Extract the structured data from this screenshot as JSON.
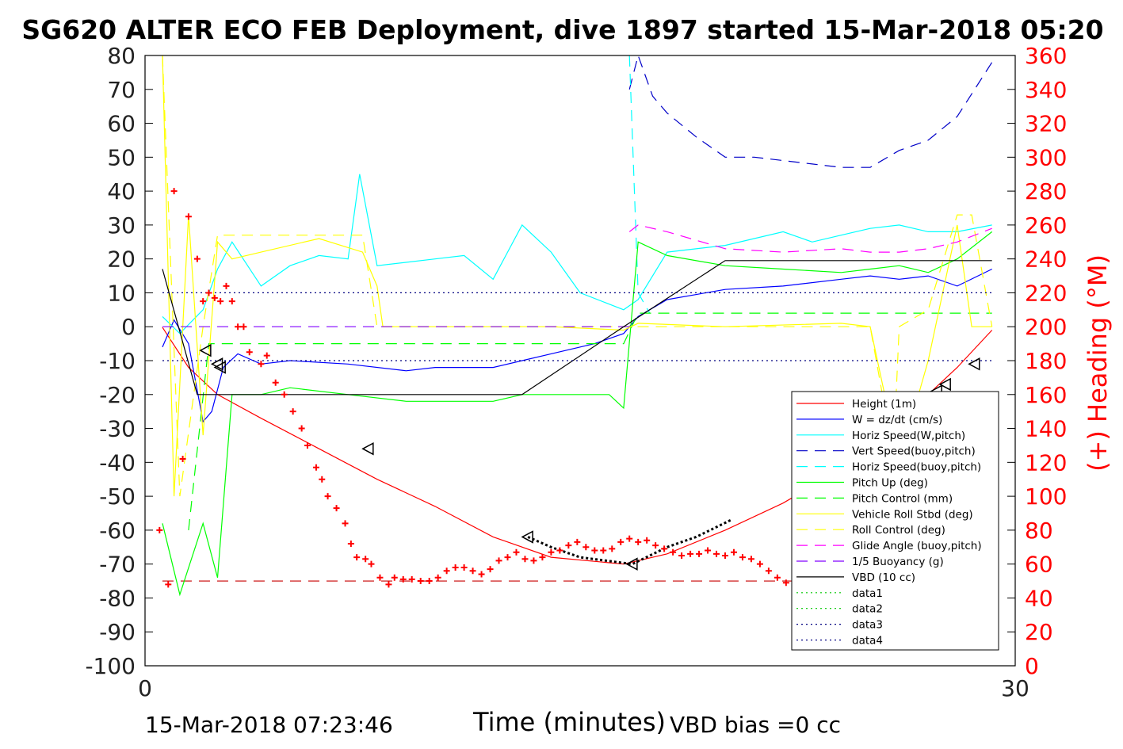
{
  "chart_data": {
    "type": "line",
    "title": "SG620 ALTER ECO FEB Deployment, dive 1897 started 15-Mar-2018 05:20",
    "xlabel": "Time (minutes)",
    "ylabel_left": "",
    "ylabel_right": "(+) Heading (°M)",
    "xlim": [
      0,
      30
    ],
    "ylim": [
      -100,
      80
    ],
    "ylim_right": [
      0,
      360
    ],
    "xticks": [
      "0",
      "30"
    ],
    "yticks": [
      "80",
      "70",
      "60",
      "50",
      "40",
      "30",
      "20",
      "10",
      "0",
      "-10",
      "-20",
      "-30",
      "-40",
      "-50",
      "-60",
      "-70",
      "-80",
      "-90",
      "-100"
    ],
    "yticks_right": [
      "360",
      "340",
      "320",
      "300",
      "280",
      "260",
      "240",
      "220",
      "200",
      "180",
      "160",
      "140",
      "120",
      "100",
      "80",
      "60",
      "40",
      "20",
      "0"
    ],
    "grid": false,
    "legend_position": "lower-right",
    "series": [
      {
        "name": "Height (1m)",
        "color": "#ff0000",
        "style": "solid",
        "x": [
          0.6,
          1.5,
          2.5,
          4,
          6,
          8,
          10,
          12,
          14,
          16.5,
          18,
          20,
          22,
          24,
          25,
          26,
          27,
          28,
          29.2
        ],
        "y": [
          -0.2,
          -12,
          -20,
          -27,
          -36,
          -45,
          -53,
          -62,
          -68,
          -70,
          -67,
          -60,
          -52,
          -42,
          -35,
          -27,
          -20,
          -12,
          -1
        ]
      },
      {
        "name": "W = dz/dt (cm/s)",
        "color": "#0000ff",
        "style": "solid",
        "x": [
          0.6,
          1,
          1.5,
          2,
          2.3,
          2.7,
          3.2,
          4,
          5,
          7,
          9,
          10,
          12,
          13,
          14,
          15.5,
          16.5,
          17,
          18,
          20,
          22,
          24,
          25,
          26,
          27,
          28,
          29.2
        ],
        "y": [
          -6,
          2,
          -5,
          -28,
          -25,
          -12,
          -8,
          -11,
          -10,
          -11,
          -13,
          -12,
          -12,
          -10,
          -8,
          -5,
          -2,
          3,
          8,
          11,
          12,
          14,
          15,
          14,
          15,
          12,
          17
        ]
      },
      {
        "name": "Horiz Speed(W,pitch)",
        "color": "#00ffff",
        "style": "solid",
        "x": [
          0.6,
          1.2,
          2,
          2.5,
          3,
          4,
          5,
          6,
          7,
          7.4,
          8,
          10,
          11,
          12,
          13,
          14,
          15,
          16.5,
          17,
          18,
          20,
          22,
          23,
          24,
          25,
          26,
          27,
          28,
          29.2
        ],
        "y": [
          3,
          -2,
          5,
          17,
          25,
          12,
          18,
          21,
          20,
          45,
          18,
          20,
          21,
          14,
          30,
          22,
          10,
          5,
          8,
          22,
          24,
          28,
          25,
          27,
          29,
          30,
          28,
          28,
          30
        ]
      },
      {
        "name": "Vert Speed(buoy,pitch)",
        "color": "#0000c8",
        "style": "dashed",
        "x": [
          16.7,
          17,
          17.5,
          18,
          19,
          20,
          21,
          22,
          23,
          24,
          25,
          26,
          27,
          28,
          29.2
        ],
        "y": [
          70,
          80,
          68,
          63,
          56,
          50,
          50,
          49,
          48,
          47,
          47,
          52,
          55,
          62,
          78
        ]
      },
      {
        "name": "Horiz Speed(buoy,pitch)",
        "color": "#00ffff",
        "style": "dashed",
        "x": [
          16.7,
          17,
          17.4
        ],
        "y": [
          80,
          10,
          4
        ]
      },
      {
        "name": "Pitch Up (deg)",
        "color": "#00ff00",
        "style": "solid",
        "x": [
          0.6,
          1.2,
          2,
          2.5,
          3,
          4,
          5,
          7,
          9,
          10,
          12,
          13,
          14,
          15,
          16,
          16.5,
          17,
          18,
          20,
          22,
          24,
          25,
          26,
          27,
          28,
          29.2
        ],
        "y": [
          -58,
          -79,
          -58,
          -74,
          -20,
          -20,
          -18,
          -20,
          -22,
          -22,
          -22,
          -20,
          -20,
          -20,
          -20,
          -24,
          25,
          21,
          18,
          17,
          16,
          17,
          18,
          16,
          20,
          28
        ]
      },
      {
        "name": "Pitch Control (mm)",
        "color": "#00ff00",
        "style": "dashed",
        "x": [
          1.5,
          2.2,
          3,
          5,
          10,
          13,
          16.5,
          17,
          20,
          25,
          29.2
        ],
        "y": [
          -60,
          -5,
          -5,
          -5,
          -5,
          -5,
          -5,
          4,
          4,
          4,
          4
        ]
      },
      {
        "name": "Vehicle Roll Stbd (deg)",
        "color": "#ffff00",
        "style": "solid",
        "x": [
          0.6,
          1,
          1.5,
          2,
          2.5,
          3,
          4,
          6,
          7.5,
          8,
          8.2,
          10,
          12,
          14,
          16.5,
          17,
          20,
          24,
          25,
          26,
          27,
          28,
          28.5,
          29.2
        ],
        "y": [
          80,
          -50,
          33,
          -32,
          25,
          20,
          22,
          26,
          22,
          12,
          0,
          0,
          0,
          0,
          -1,
          1,
          0,
          1,
          0,
          -40,
          -10,
          30,
          0,
          0
        ]
      },
      {
        "name": "Roll Control (deg)",
        "color": "#ffff00",
        "style": "dashed",
        "x": [
          0.6,
          1.2,
          2,
          2.5,
          3,
          7.5,
          8,
          10,
          14,
          17,
          25,
          25.8,
          26,
          27,
          28,
          28.5,
          29.2
        ],
        "y": [
          80,
          -50,
          0,
          27,
          27,
          27,
          0,
          0,
          0,
          0,
          0,
          -38,
          0,
          5,
          33,
          33,
          0
        ]
      },
      {
        "name": "Glide Angle (buoy,pitch)",
        "color": "#ff00ff",
        "style": "dashed",
        "x": [
          16.7,
          17,
          18,
          20,
          22,
          24,
          25,
          26,
          27,
          28,
          29.2
        ],
        "y": [
          28,
          30,
          28,
          23,
          22,
          23,
          22,
          22,
          23,
          25,
          29
        ]
      },
      {
        "name": "1/5 Buoyancy (g)",
        "color": "#8000ff",
        "style": "dashed",
        "x": [
          0.6,
          16.7
        ],
        "y": [
          0,
          0
        ]
      },
      {
        "name": "VBD (10 cc)",
        "color": "#000000",
        "style": "solid",
        "x": [
          0.6,
          1.8,
          13,
          16.5,
          20,
          29.2
        ],
        "y": [
          17,
          -20,
          -20,
          0,
          19.5,
          19.5
        ]
      },
      {
        "name": "data1",
        "color": "#00c800",
        "style": "dotted",
        "x": [],
        "y": []
      },
      {
        "name": "data2",
        "color": "#00c800",
        "style": "dotted",
        "x": [],
        "y": []
      },
      {
        "name": "data3",
        "color": "#000080",
        "style": "dotted",
        "x": [
          0.6,
          29.2
        ],
        "y": [
          10,
          10
        ]
      },
      {
        "name": "data4",
        "color": "#000080",
        "style": "dotted",
        "x": [
          0.6,
          29.2
        ],
        "y": [
          -10,
          -10
        ]
      }
    ],
    "heading_reference": {
      "color": "#c80000",
      "style": "dashed",
      "y_right": 50
    },
    "heading_points": {
      "color": "#ff0000",
      "marker": "+",
      "x": [
        0.5,
        0.8,
        1.0,
        1.3,
        1.5,
        1.8,
        2.0,
        2.2,
        2.4,
        2.6,
        2.8,
        3.0,
        3.2,
        3.4,
        3.6,
        4.0,
        4.2,
        4.5,
        4.8,
        5.1,
        5.4,
        5.6,
        5.9,
        6.1,
        6.3,
        6.6,
        6.9,
        7.1,
        7.3,
        7.6,
        7.8,
        8.1,
        8.4,
        8.6,
        8.9,
        9.2,
        9.5,
        9.8,
        10.1,
        10.4,
        10.7,
        11.0,
        11.3,
        11.6,
        11.9,
        12.2,
        12.5,
        12.8,
        13.1,
        13.4,
        13.7,
        14.0,
        14.3,
        14.6,
        14.9,
        15.2,
        15.5,
        15.8,
        16.1,
        16.4,
        16.7,
        17.0,
        17.3,
        17.6,
        17.9,
        18.2,
        18.5,
        18.8,
        19.1,
        19.4,
        19.7,
        20.0,
        20.3,
        20.6,
        20.9,
        21.2,
        21.5,
        21.8,
        22.1,
        22.4,
        22.7,
        23.0,
        23.3,
        23.6,
        23.9,
        24.2,
        24.5,
        24.8,
        25.1,
        25.4,
        25.7,
        26.0,
        26.3,
        26.6,
        26.9,
        27.2,
        27.5,
        27.8,
        28.1,
        28.4,
        28.7,
        29.0,
        29.3
      ],
      "y": [
        80,
        48,
        280,
        122,
        265,
        240,
        215,
        220,
        217,
        215,
        224,
        215,
        200,
        200,
        185,
        178,
        183,
        167,
        160,
        150,
        140,
        130,
        117,
        110,
        100,
        93,
        84,
        72,
        64,
        63,
        60,
        52,
        48,
        52,
        51,
        51,
        50,
        50,
        52,
        56,
        58,
        58,
        56,
        54,
        57,
        62,
        64,
        67,
        63,
        62,
        64,
        67,
        68,
        71,
        73,
        70,
        68,
        68,
        69,
        73,
        75,
        73,
        74,
        71,
        69,
        67,
        65,
        66,
        66,
        68,
        66,
        65,
        67,
        64,
        63,
        60,
        56,
        52,
        49,
        57,
        64,
        66,
        70,
        66,
        60,
        49,
        40,
        30,
        24,
        23,
        20,
        16,
        22,
        19,
        38,
        39,
        82,
        72,
        60,
        65,
        66,
        78,
        60
      ]
    },
    "triangle_markers": {
      "x": [
        2.1,
        2.5,
        2.6,
        7.7,
        13.2,
        16.8,
        25.0,
        25.2,
        25.8,
        27.3,
        27.6,
        28.6
      ],
      "y": [
        -7,
        -11,
        -12,
        -36,
        -62,
        -70,
        -33,
        -30,
        -28,
        -19,
        -17,
        -11
      ]
    },
    "dotted_black": {
      "x": [
        13.2,
        14,
        15,
        16.8,
        18,
        19,
        20.2
      ],
      "y": [
        -62,
        -65,
        -68,
        -70,
        -65,
        -62,
        -57
      ]
    }
  },
  "footer": {
    "timestamp": "15-Mar-2018 07:23:46",
    "vbd_bias": "VBD bias =0 cc"
  }
}
